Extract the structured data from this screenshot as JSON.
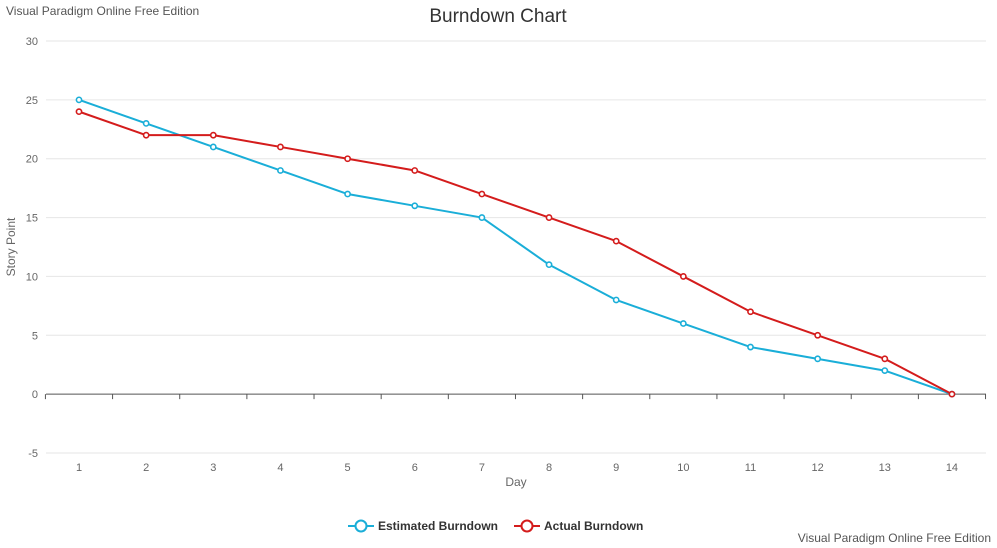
{
  "watermark": {
    "top": "Visual Paradigm Online Free Edition",
    "bottom": "Visual Paradigm Online Free Edition"
  },
  "chart_data": {
    "type": "line",
    "title": "Burndown Chart",
    "xlabel": "Day",
    "ylabel": "Story Point",
    "categories": [
      "1",
      "2",
      "3",
      "4",
      "5",
      "6",
      "7",
      "8",
      "9",
      "10",
      "11",
      "12",
      "13",
      "14"
    ],
    "y_ticks": [
      30,
      25,
      20,
      15,
      10,
      5,
      0,
      -5
    ],
    "ylim": [
      -5,
      30
    ],
    "grid": true,
    "legend_position": "bottom-center",
    "series": [
      {
        "name": "Estimated Burndown",
        "color": "#1aaed8",
        "values": [
          25,
          23,
          21,
          19,
          17,
          16,
          15,
          11,
          8,
          6,
          4,
          3,
          2,
          0
        ]
      },
      {
        "name": "Actual Burndown",
        "color": "#d41c1c",
        "values": [
          24,
          22,
          22,
          21,
          20,
          19,
          17,
          15,
          13,
          10,
          7,
          5,
          3,
          0
        ]
      }
    ]
  }
}
